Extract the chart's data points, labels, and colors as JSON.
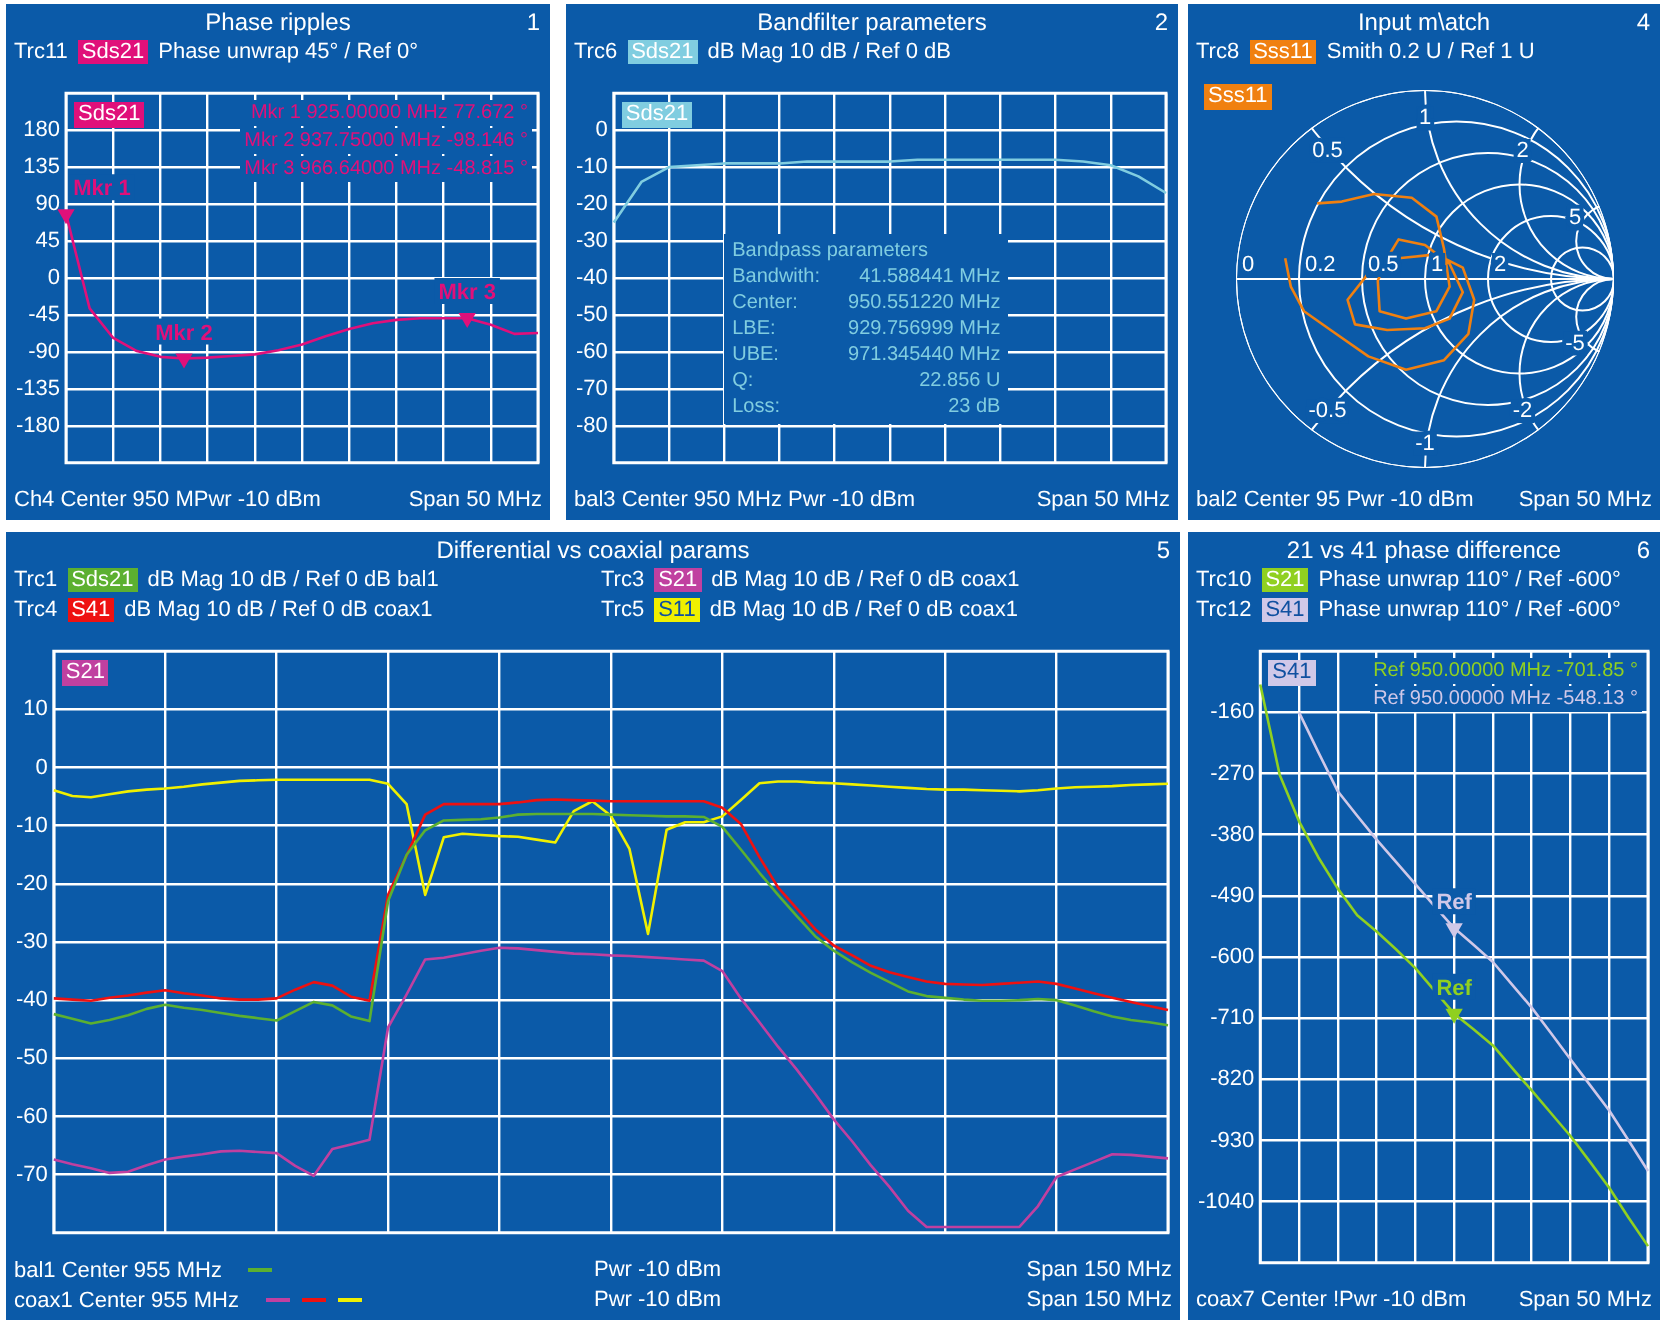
{
  "chart_data": [
    {
      "type": "line",
      "title": "Phase ripples",
      "categories": [
        null,
        null,
        null,
        null,
        null,
        null,
        null,
        null,
        null,
        null,
        null,
        null,
        null,
        null,
        null,
        null,
        null,
        null,
        null,
        null,
        null
      ],
      "series": [
        {
          "name": "Sds21",
          "color": "#e0107a",
          "values": [
            78,
            -37,
            -73,
            -89,
            -96,
            -98,
            -97,
            -95,
            -93,
            -88,
            -81,
            -71,
            -62,
            -55,
            -51,
            -49,
            -49,
            -49,
            -57,
            -68,
            -67
          ]
        },
        {
          "type": "scatter",
          "marker": "triangle",
          "color": "#e0107a",
          "values": [
            77.672,
            null,
            null,
            null,
            null,
            -98.146,
            null,
            null,
            null,
            null,
            null,
            null,
            null,
            null,
            null,
            null,
            null,
            -48.815,
            null,
            null,
            null
          ]
        }
      ],
      "ylim": [
        -225,
        225
      ],
      "yticks": [
        -180,
        -135,
        -90,
        -45,
        0,
        45,
        90,
        135,
        180
      ],
      "grid": true,
      "legend": "top",
      "tick_labels": "y",
      "annotations": [
        "1",
        "Trc11",
        "Phase unwrap 45° / Ref 0°",
        "Ch4 Center 950 MPwr -10 dBm",
        "Span 50 MHz",
        "Mkr 1 925.00000 MHz 77.672 °",
        "Mkr 2 937.75000 MHz -98.146 °",
        "Mkr 3 966.64000 MHz -48.815 °",
        "Mkr 1",
        "Mkr 2",
        "Mkr 3"
      ]
    },
    {
      "type": "line",
      "title": "Bandfilter parameters",
      "categories": [
        null,
        null,
        null,
        null,
        null,
        null,
        null,
        null,
        null,
        null,
        null,
        null,
        null,
        null,
        null,
        null,
        null,
        null,
        null,
        null,
        null
      ],
      "series": [
        {
          "name": "Sds21",
          "color": "#80cde0",
          "values": [
            -25,
            -14,
            -10,
            -9.5,
            -9,
            -9,
            -9,
            -8.5,
            -8.5,
            -8.5,
            -8.5,
            -8,
            -8,
            -8,
            -8,
            -8,
            -8,
            -8.5,
            -9.5,
            -12.5,
            -17
          ]
        }
      ],
      "ylim": [
        -90,
        10
      ],
      "yticks": [
        -80,
        -70,
        -60,
        -50,
        -40,
        -30,
        -20,
        -10,
        0
      ],
      "grid": true,
      "legend": "top",
      "tick_labels": "y",
      "annotations": [
        "2",
        "Trc6",
        "dB Mag 10 dB / Ref 0 dB",
        "bal3 Center 950 MHz Pwr -10 dBm",
        "Span 50 MHz",
        "Bandpass parameters",
        "Bandwith:",
        "41.588441 MHz",
        "Center:",
        "950.551220 MHz",
        "LBE:",
        "929.756999 MHz",
        "UBE:",
        "971.345440 MHz",
        "Q:",
        "22.856 U",
        "Loss:",
        "23 dB"
      ]
    },
    {
      "type": "other",
      "title": "Input m\\atch",
      "annotations": [
        "4",
        "Trc8",
        "Sss11",
        "Smith 0.2 U / Ref 1 U",
        "Sss11",
        "bal2 Center 95 Pwr -10 dBm",
        "Span 50 MHz",
        "0",
        "0.2",
        "0.5",
        "1",
        "2",
        "0.5",
        "1",
        "2",
        "5",
        "-0.5",
        "-1",
        "-2",
        "-5"
      ]
    },
    {
      "type": "line",
      "title": "Differential vs coaxial params",
      "categories": [
        null,
        null,
        null,
        null,
        null,
        null,
        null,
        null,
        null,
        null,
        null,
        null,
        null,
        null,
        null,
        null,
        null,
        null,
        null,
        null,
        null,
        null,
        null,
        null,
        null,
        null,
        null,
        null,
        null,
        null,
        null,
        null,
        null,
        null,
        null,
        null,
        null,
        null,
        null,
        null,
        null,
        null,
        null,
        null,
        null,
        null,
        null,
        null,
        null,
        null,
        null,
        null,
        null,
        null,
        null,
        null,
        null,
        null,
        null,
        null,
        null
      ],
      "series": [
        {
          "name": "Sds21",
          "color": "#5cb030",
          "values": [
            -42.4,
            -43.2,
            -44,
            -43.4,
            -42.6,
            -41.5,
            -40.8,
            -41.3,
            -41.7,
            -42.2,
            -42.7,
            -43.1,
            -43.5,
            -41.9,
            -40.3,
            -40.9,
            -42.8,
            -43.6,
            -23,
            -15,
            -10.8,
            -9.1,
            -9,
            -8.9,
            -8.6,
            -8.1,
            -8,
            -8,
            -8,
            -8,
            -8.1,
            -8.2,
            -8.3,
            -8.4,
            -8.4,
            -8.5,
            -10.2,
            -14.1,
            -18.1,
            -21.9,
            -25.5,
            -29,
            -31.5,
            -33.5,
            -35.3,
            -36.9,
            -38.5,
            -39.3,
            -39.6,
            -39.9,
            -40.1,
            -40.1,
            -40,
            -39.8,
            -40,
            -40.9,
            -41.9,
            -42.8,
            -43.4,
            -43.8,
            -44.3
          ]
        },
        {
          "name": "S21",
          "color": "#c040a0",
          "values": [
            -67.4,
            -68.2,
            -68.9,
            -69.7,
            -69.5,
            -68.4,
            -67.4,
            -66.9,
            -66.5,
            -66,
            -65.9,
            -66.1,
            -66.3,
            -68.5,
            -70.2,
            -65.6,
            -64.8,
            -64,
            -44.7,
            -39,
            -33,
            -32.7,
            -32.1,
            -31.5,
            -31,
            -31.1,
            -31.4,
            -31.7,
            -32,
            -32.1,
            -32.3,
            -32.4,
            -32.6,
            -32.8,
            -33,
            -33.2,
            -35,
            -39.7,
            -43.8,
            -48,
            -51.9,
            -56.1,
            -60.5,
            -64.3,
            -68.4,
            -72.1,
            -76.2,
            -79,
            -79,
            -79,
            -79,
            -79,
            -79,
            -75.4,
            -70.4,
            -69.1,
            -67.8,
            -66.5,
            -66.6,
            -66.9,
            -67.2
          ]
        },
        {
          "name": "S41",
          "color": "#ee1111",
          "values": [
            -39.7,
            -39.9,
            -40.1,
            -39.6,
            -39.2,
            -38.7,
            -38.3,
            -38.8,
            -39.2,
            -39.7,
            -39.9,
            -39.9,
            -39.7,
            -38.2,
            -36.9,
            -37.5,
            -39.4,
            -40.1,
            -21.9,
            -15.1,
            -8.1,
            -6.3,
            -6.3,
            -6.3,
            -6.3,
            -6,
            -5.6,
            -5.5,
            -5.6,
            -5.7,
            -5.8,
            -5.8,
            -5.8,
            -5.8,
            -5.8,
            -5.8,
            -6.9,
            -9.7,
            -15.4,
            -20.6,
            -24.2,
            -27.8,
            -30.6,
            -32.3,
            -34.1,
            -35.2,
            -36,
            -36.8,
            -37.2,
            -37.3,
            -37.4,
            -37.2,
            -37,
            -36.8,
            -37.2,
            -38,
            -38.8,
            -39.6,
            -40.3,
            -41,
            -41.7
          ]
        },
        {
          "name": "S11",
          "color": "#f0f000",
          "values": [
            -3.9,
            -4.9,
            -5.1,
            -4.6,
            -4.1,
            -3.8,
            -3.6,
            -3.3,
            -2.9,
            -2.6,
            -2.3,
            -2.2,
            -2.1,
            -2.1,
            -2.1,
            -2.1,
            -2.1,
            -2.1,
            -2.8,
            -6.3,
            -21.9,
            -12,
            -11.4,
            -11.6,
            -11.8,
            -11.9,
            -12.4,
            -12.9,
            -7.5,
            -5.8,
            -8.3,
            -14,
            -28.6,
            -10.7,
            -9.4,
            -9.4,
            -8.4,
            -5.6,
            -2.7,
            -2.4,
            -2.4,
            -2.6,
            -2.7,
            -2.9,
            -3.1,
            -3.3,
            -3.5,
            -3.7,
            -3.8,
            -3.8,
            -3.9,
            -4,
            -4.1,
            -3.9,
            -3.6,
            -3.4,
            -3.3,
            -3.2,
            -3,
            -2.9,
            -2.8
          ]
        }
      ],
      "ylim": [
        -80,
        20
      ],
      "yticks": [
        -70,
        -60,
        -50,
        -40,
        -30,
        -20,
        -10,
        0,
        10
      ],
      "grid": true,
      "legend": "top",
      "tick_labels": "y",
      "annotations": [
        "5",
        "Trc1",
        "dB Mag 10 dB / Ref 0 dB bal1",
        "Trc3",
        "dB Mag 10 dB / Ref 0 dB coax1",
        "Trc4",
        "dB Mag 10 dB / Ref 0 dB coax1",
        "Trc5",
        "dB Mag 10 dB / Ref 0 dB coax1",
        "bal1 Center 955 MHz",
        "Pwr -10 dBm",
        "Span 150 MHz",
        "coax1 Center 955 MHz",
        "Pwr -10 dBm",
        "Span 150 MHz"
      ]
    },
    {
      "type": "line",
      "title": "21 vs 41 phase difference",
      "categories": [
        null,
        null,
        null,
        null,
        null,
        null,
        null,
        null,
        null,
        null,
        null,
        null,
        null,
        null,
        null,
        null,
        null,
        null,
        null,
        null,
        null
      ],
      "series": [
        {
          "name": "S21",
          "color": "#90d020",
          "values": [
            -110,
            -272,
            -356,
            -421,
            -477,
            -525,
            -554,
            -586,
            -620,
            -661,
            -702,
            -730,
            -759,
            -800,
            -840,
            -881,
            -922,
            -968,
            -1015,
            -1069,
            -1120
          ]
        },
        {
          "name": "S41",
          "color": "#d0c8e8",
          "values": [
            null,
            null,
            -160,
            -232,
            -302,
            -346,
            -389,
            -429,
            -469,
            -509,
            -548,
            -578,
            -609,
            -650,
            -691,
            -737,
            -784,
            -830,
            -876,
            -930,
            -985
          ]
        },
        {
          "type": "scatter",
          "marker": "triangle",
          "color": "#90d020",
          "values": [
            null,
            null,
            null,
            null,
            null,
            null,
            null,
            null,
            null,
            null,
            -701.85,
            null,
            null,
            null,
            null,
            null,
            null,
            null,
            null,
            null,
            null
          ]
        },
        {
          "type": "scatter",
          "marker": "triangle",
          "color": "#d0c8e8",
          "values": [
            null,
            null,
            null,
            null,
            null,
            null,
            null,
            null,
            null,
            null,
            -548.13,
            null,
            null,
            null,
            null,
            null,
            null,
            null,
            null,
            null,
            null
          ]
        }
      ],
      "ylim": [
        -1150,
        -50
      ],
      "yticks": [
        -1040,
        -930,
        -820,
        -710,
        -600,
        -490,
        -380,
        -270,
        -160
      ],
      "grid": true,
      "legend": "top",
      "tick_labels": "y",
      "annotations": [
        "6",
        "Trc10",
        "Phase unwrap 110° / Ref -600°",
        "Trc12",
        "Phase unwrap 110° / Ref -600°",
        "coax7 Center !Pwr -10 dBm",
        "Span 50 MHz",
        "Ref 950.00000 MHz -701.85 °",
        "Ref 950.00000 MHz -548.13 °",
        "Ref",
        "Ref"
      ]
    }
  ]
}
